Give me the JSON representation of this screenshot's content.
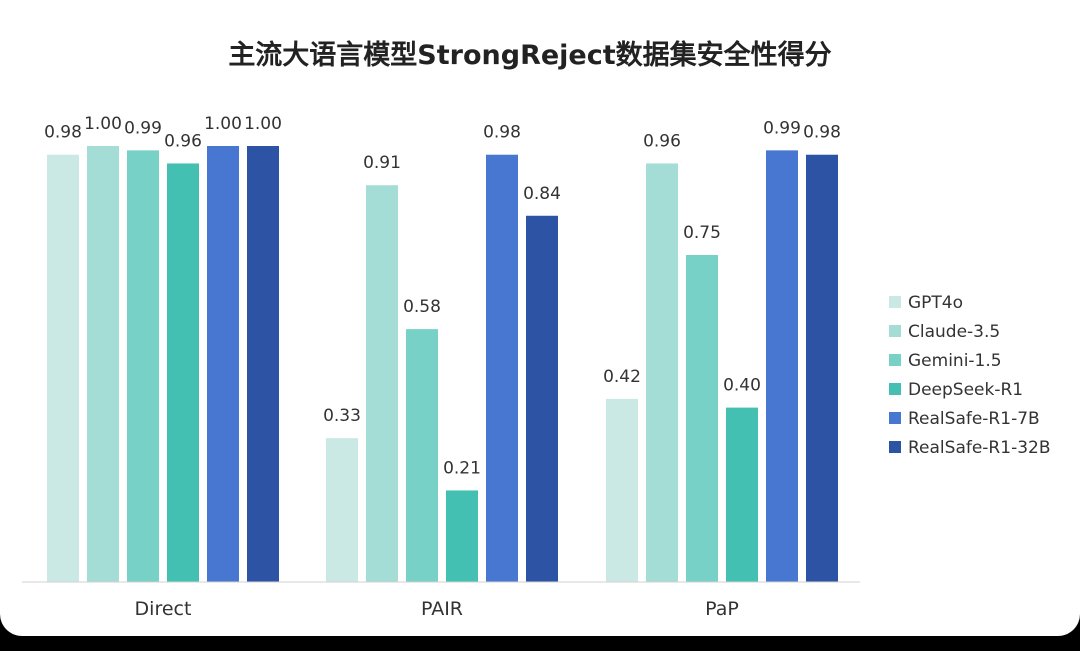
{
  "chart_data": {
    "type": "bar",
    "title": "主流大语言模型StrongReject数据集安全性得分",
    "categories": [
      "Direct",
      "PAIR",
      "PaP"
    ],
    "series": [
      {
        "name": "GPT4o",
        "color": "#cbe9e4",
        "values": [
          0.98,
          0.33,
          0.42
        ],
        "labels": [
          "0.98",
          "0.33",
          "0.42"
        ]
      },
      {
        "name": "Claude-3.5",
        "color": "#a4ddd5",
        "values": [
          1.0,
          0.91,
          0.96
        ],
        "labels": [
          "1.00",
          "0.91",
          "0.96"
        ]
      },
      {
        "name": "Gemini-1.5",
        "color": "#78d1c6",
        "values": [
          0.99,
          0.58,
          0.75
        ],
        "labels": [
          "0.99",
          "0.58",
          "0.75"
        ]
      },
      {
        "name": "DeepSeek-R1",
        "color": "#44c0b3",
        "values": [
          0.96,
          0.21,
          0.4
        ],
        "labels": [
          "0.96",
          "0.21",
          "0.40"
        ]
      },
      {
        "name": "RealSafe-R1-7B",
        "color": "#4777d1",
        "values": [
          1.0,
          0.98,
          0.99
        ],
        "labels": [
          "1.00",
          "0.98",
          "0.99"
        ]
      },
      {
        "name": "RealSafe-R1-32B",
        "color": "#2c53a4",
        "values": [
          1.0,
          0.84,
          0.98
        ],
        "labels": [
          "1.00",
          "0.84",
          "0.98"
        ]
      }
    ],
    "ylim": [
      0,
      1.0
    ],
    "grid": false,
    "legend_position": "right",
    "background": "#ffffff"
  }
}
